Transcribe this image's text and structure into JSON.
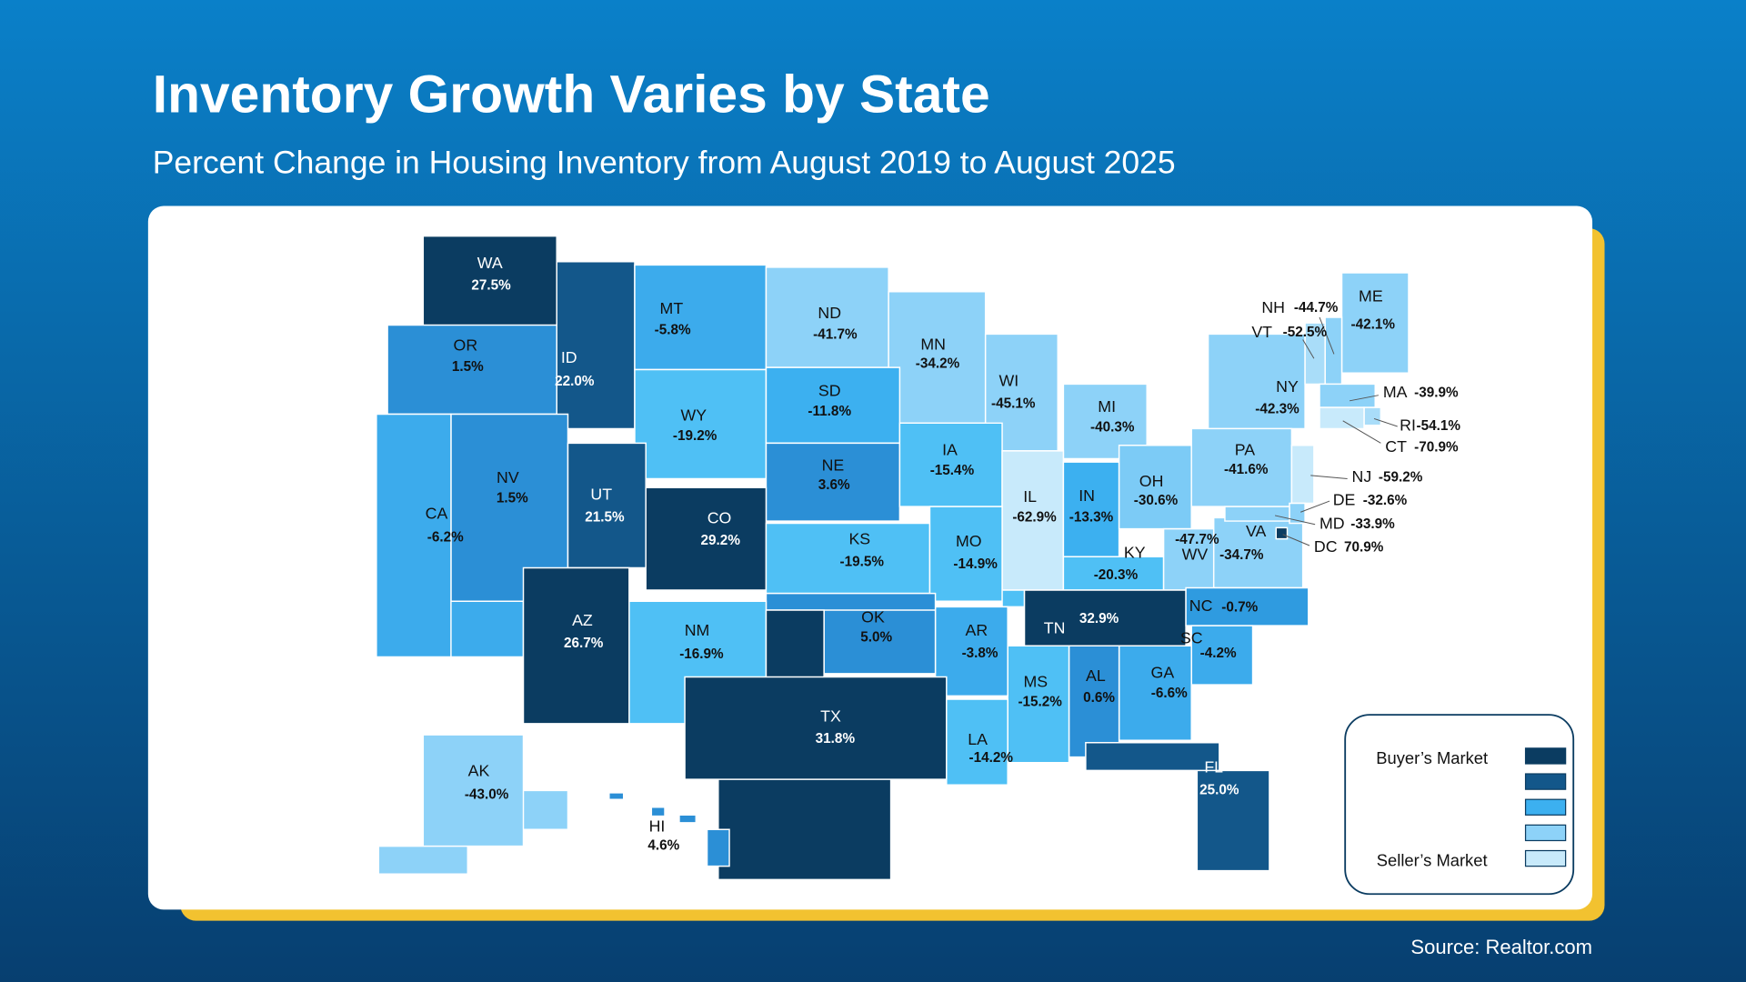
{
  "header": {
    "title": "Inventory Growth Varies by State",
    "subtitle": "Percent Change in Housing Inventory from August 2019 to August 2025"
  },
  "map": {
    "states": [
      {
        "code": "WA",
        "label": "27.5%",
        "color": "#0b3c61"
      },
      {
        "code": "OR",
        "label": "1.5%",
        "color": "#2b8fd6"
      },
      {
        "code": "ID",
        "label": "22.0%",
        "color": "#13578a"
      },
      {
        "code": "MT",
        "label": "-5.8%",
        "color": "#3cabec"
      },
      {
        "code": "ND",
        "label": "-41.7%",
        "color": "#8dd2f8"
      },
      {
        "code": "MN",
        "label": "-34.2%",
        "color": "#8dd2f8"
      },
      {
        "code": "WI",
        "label": "-45.1%",
        "color": "#8dd2f8"
      },
      {
        "code": "MI",
        "label": "-40.3%",
        "color": "#8dd2f8"
      },
      {
        "code": "NY",
        "label": "-42.3%",
        "color": "#8dd2f8"
      },
      {
        "code": "ME",
        "label": "-42.1%",
        "color": "#8dd2f8"
      },
      {
        "code": "WY",
        "label": "-19.2%",
        "color": "#4fc0f5"
      },
      {
        "code": "SD",
        "label": "-11.8%",
        "color": "#3cb0f0"
      },
      {
        "code": "NE",
        "label": "3.6%",
        "color": "#2b8fd6"
      },
      {
        "code": "IA",
        "label": "-15.4%",
        "color": "#4fc0f5"
      },
      {
        "code": "IL",
        "label": "-62.9%",
        "color": "#c8eafb"
      },
      {
        "code": "IN",
        "label": "-13.3%",
        "color": "#3cb0f0"
      },
      {
        "code": "OH",
        "label": "-30.6%",
        "color": "#7ccbf6"
      },
      {
        "code": "PA",
        "label": "-41.6%",
        "color": "#8dd2f8"
      },
      {
        "code": "NV",
        "label": "1.5%",
        "color": "#2b8fd6"
      },
      {
        "code": "CA",
        "label": "-6.2%",
        "color": "#3cabec"
      },
      {
        "code": "UT",
        "label": "21.5%",
        "color": "#13578a"
      },
      {
        "code": "CO",
        "label": "29.2%",
        "color": "#0b3c61"
      },
      {
        "code": "KS",
        "label": "-19.5%",
        "color": "#4fc0f5"
      },
      {
        "code": "MO",
        "label": "-14.9%",
        "color": "#4fc0f5"
      },
      {
        "code": "KY",
        "label": "-20.3%",
        "color": "#4fc0f5"
      },
      {
        "code": "WV",
        "label": "-47.7%",
        "color": "#8dd2f8"
      },
      {
        "code": "VA",
        "label": "-34.7%",
        "color": "#8dd2f8"
      },
      {
        "code": "TN",
        "label": "32.9%",
        "color": "#0b3c61"
      },
      {
        "code": "NC",
        "label": "-0.7%",
        "color": "#2f9be0"
      },
      {
        "code": "SC",
        "label": "-4.2%",
        "color": "#3cabec"
      },
      {
        "code": "GA",
        "label": "-6.6%",
        "color": "#3cabec"
      },
      {
        "code": "AL",
        "label": "0.6%",
        "color": "#2b8fd6"
      },
      {
        "code": "MS",
        "label": "-15.2%",
        "color": "#4fc0f5"
      },
      {
        "code": "AR",
        "label": "-3.8%",
        "color": "#3cabec"
      },
      {
        "code": "OK",
        "label": "5.0%",
        "color": "#2b8fd6"
      },
      {
        "code": "NM",
        "label": "-16.9%",
        "color": "#4fc0f5"
      },
      {
        "code": "AZ",
        "label": "26.7%",
        "color": "#0b3c61"
      },
      {
        "code": "TX",
        "label": "31.8%",
        "color": "#0b3c61"
      },
      {
        "code": "LA",
        "label": "-14.2%",
        "color": "#4fc0f5"
      },
      {
        "code": "FL",
        "label": "25.0%",
        "color": "#13578a"
      },
      {
        "code": "AK",
        "label": "-43.0%",
        "color": "#8dd2f8"
      },
      {
        "code": "HI",
        "label": "4.6%",
        "color": "#2b8fd6"
      },
      {
        "code": "NH",
        "label": "-44.7%",
        "color": "#8dd2f8"
      },
      {
        "code": "VT",
        "label": "-52.5%",
        "color": "#a9ddf9"
      },
      {
        "code": "MA",
        "label": "-39.9%",
        "color": "#8dd2f8"
      },
      {
        "code": "RI",
        "label": "-54.1%",
        "color": "#a9ddf9"
      },
      {
        "code": "CT",
        "label": "-70.9%",
        "color": "#c8eafb"
      },
      {
        "code": "NJ",
        "label": "-59.2%",
        "color": "#c8eafb"
      },
      {
        "code": "DE",
        "label": "-32.6%",
        "color": "#8dd2f8"
      },
      {
        "code": "MD",
        "label": "-33.9%",
        "color": "#8dd2f8"
      },
      {
        "code": "DC",
        "label": "70.9%",
        "color": "#0b3c61"
      }
    ]
  },
  "legend": {
    "items": [
      {
        "label": "Buyer’s Market",
        "color": "#0b3c61"
      },
      {
        "color": "#13578a"
      },
      {
        "color": "#3cb0f0"
      },
      {
        "color": "#8dd2f8"
      },
      {
        "label": "Seller’s Market",
        "color": "#c8eafb"
      }
    ]
  },
  "source": "Source: Realtor.com"
}
